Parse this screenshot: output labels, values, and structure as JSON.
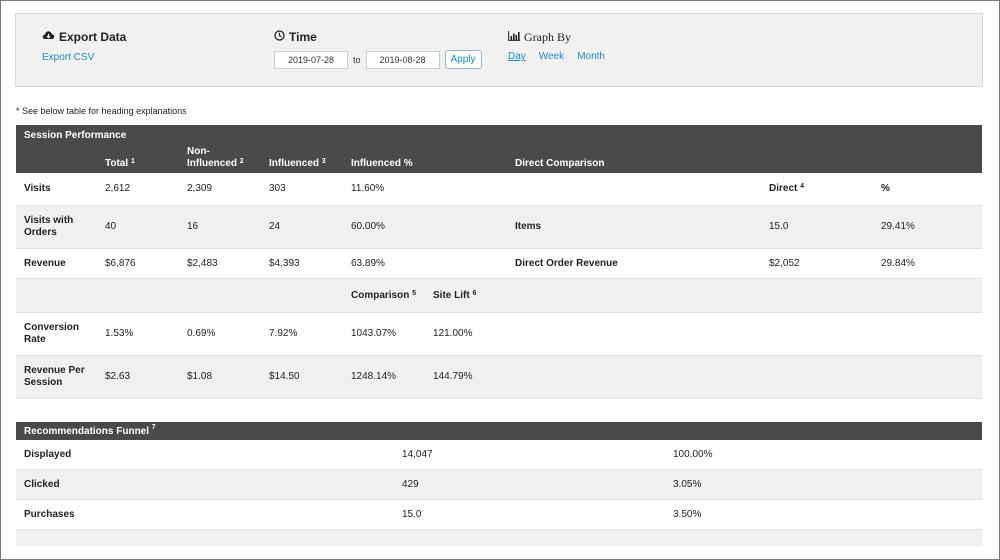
{
  "export": {
    "title": "Export Data",
    "csv_link": "Export CSV"
  },
  "time": {
    "title": "Time",
    "from": "2019-07-28",
    "to_label": "to",
    "to": "2019-08-28",
    "apply": "Apply"
  },
  "graph_by": {
    "title": "Graph By",
    "options": [
      "Day",
      "Week",
      "Month"
    ],
    "active": "Day"
  },
  "note": "* See below table for heading explanations",
  "session": {
    "title": "Session Performance",
    "headers": {
      "total": "Total",
      "total_sup": "1",
      "non_line1": "Non-",
      "non_line2": "Influenced",
      "non_sup": "2",
      "influenced": "Influenced",
      "influenced_sup": "3",
      "influenced_pct": "Influenced %",
      "direct_comparison": "Direct Comparison"
    },
    "rows": [
      {
        "label": "Visits",
        "total": "2,612",
        "non": "2,309",
        "influenced": "303",
        "pct": "11.60%",
        "dc_label": "",
        "dc_value": "Direct",
        "dc_value_sup": "4",
        "dc_pct": "%"
      },
      {
        "label1": "Visits with",
        "label2": "Orders",
        "total": "40",
        "non": "16",
        "influenced": "24",
        "pct": "60.00%",
        "dc_label": "Items",
        "dc_value": "15.0",
        "dc_pct": "29.41%"
      },
      {
        "label": "Revenue",
        "total": "$6,876",
        "non": "$2,483",
        "influenced": "$4,393",
        "pct": "63.89%",
        "dc_label": "Direct Order Revenue",
        "dc_value": "$2,052",
        "dc_pct": "29.84%"
      }
    ],
    "sub_headers": {
      "comparison": "Comparison",
      "comparison_sup": "5",
      "site_lift": "Site Lift",
      "site_lift_sup": "6"
    },
    "rows2": [
      {
        "label1": "Conversion",
        "label2": "Rate",
        "total": "1.53%",
        "non": "0.69%",
        "influenced": "7.92%",
        "comparison": "1043.07%",
        "site_lift": "121.00%"
      },
      {
        "label1": "Revenue Per",
        "label2": "Session",
        "total": "$2.63",
        "non": "$1.08",
        "influenced": "$14.50",
        "comparison": "1248.14%",
        "site_lift": "144.79%"
      }
    ]
  },
  "funnel": {
    "title": "Recommendations Funnel",
    "title_sup": "7",
    "rows": [
      {
        "label": "Displayed",
        "value": "14,047",
        "pct": "100.00%"
      },
      {
        "label": "Clicked",
        "value": "429",
        "pct": "3.05%"
      },
      {
        "label": "Purchases",
        "value": "15.0",
        "pct": "3.50%"
      }
    ]
  }
}
